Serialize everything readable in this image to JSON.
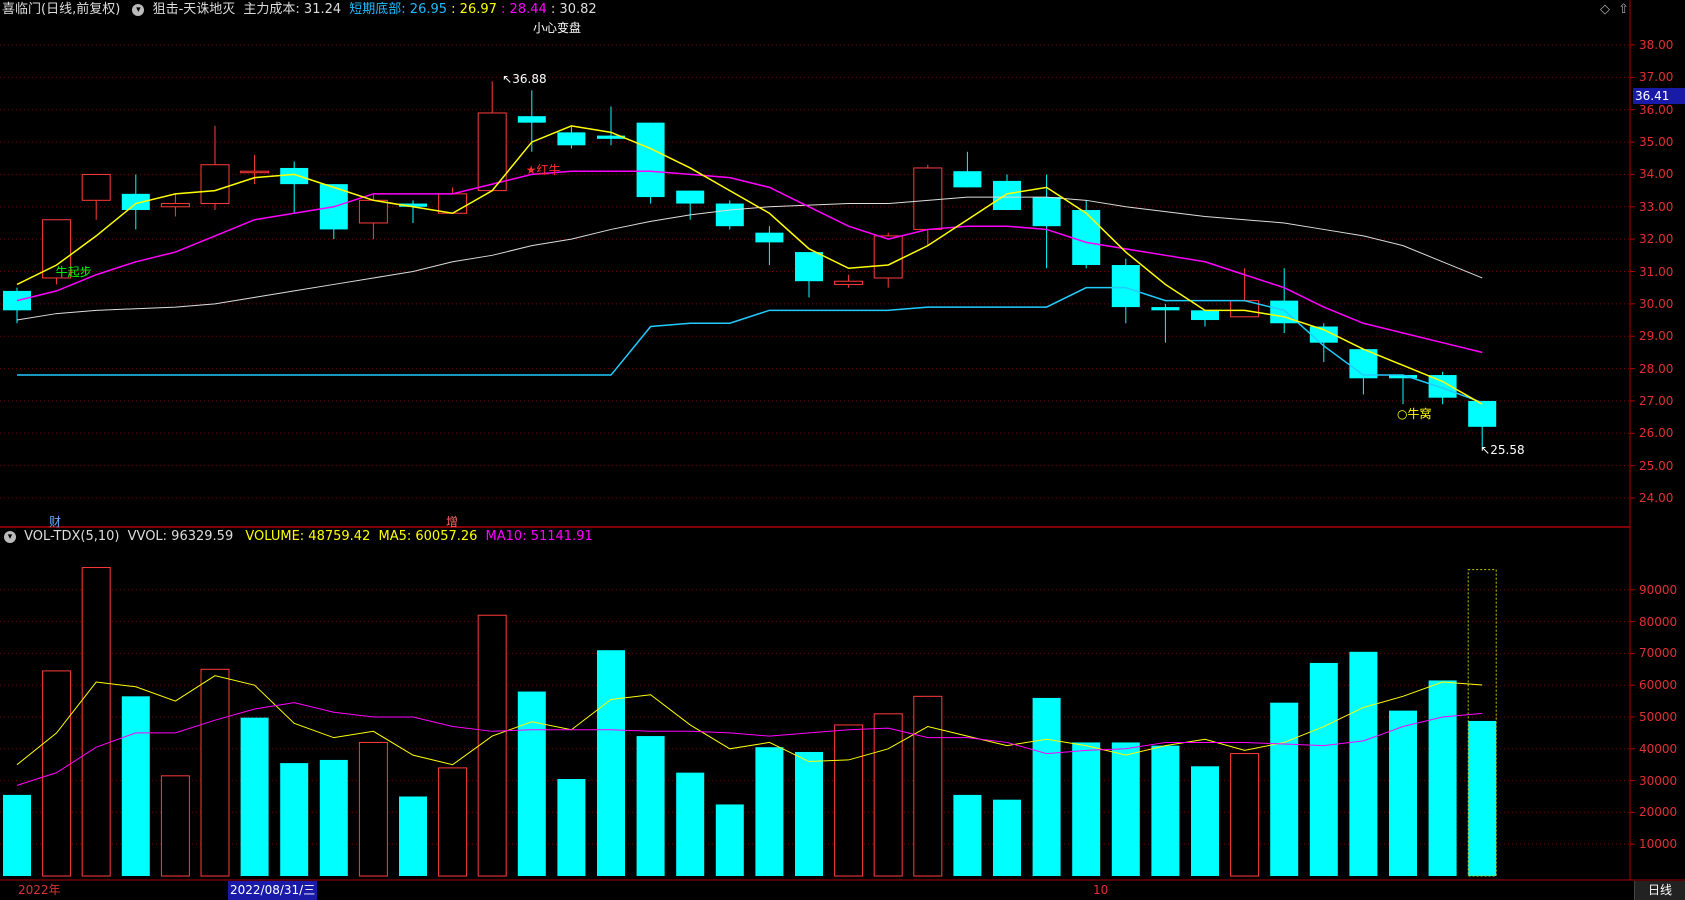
{
  "header": {
    "stock": "喜临门(日线,前复权)",
    "indicator": "狙击-天诛地灭",
    "cost_label": "主力成本: 31.24",
    "bottom_label": "短期底部: 26.95",
    "val2": ": 26.97",
    "val3": ": 28.44",
    "val4": ": 30.82",
    "signal_top": "小心变盘"
  },
  "price_axis": {
    "ticks": [
      "38.00",
      "37.00",
      "36.00",
      "35.00",
      "34.00",
      "33.00",
      "32.00",
      "31.00",
      "30.00",
      "29.00",
      "28.00",
      "27.00",
      "26.00",
      "25.00",
      "24.00"
    ],
    "current": "36.41"
  },
  "annotations": {
    "high": "36.88",
    "low": "25.58",
    "niu_qibu": "牛起步",
    "hong_niu": "★红牛",
    "niu_wo": "○牛窝",
    "cai": "财",
    "zeng": "增"
  },
  "volume_header": {
    "name": "VOL-TDX(5,10)",
    "vvol": "VVOL: 96329.59",
    "volume": "VOLUME: 48759.42",
    "ma5": "MA5: 60057.26",
    "ma10": "MA10: 51141.91"
  },
  "volume_axis": {
    "ticks": [
      "90000",
      "80000",
      "70000",
      "60000",
      "50000",
      "40000",
      "30000",
      "20000",
      "10000"
    ]
  },
  "bottom_bar": {
    "year": "2022年",
    "date": "2022/08/31/三",
    "month": "10",
    "period_tab": "日线"
  },
  "colors": {
    "up": "#ff3b3b",
    "down": "#00ffff",
    "ma5": "#ffff00",
    "ma10": "#ff00ff",
    "ma_long": "#dddddd",
    "support": "#22ccff",
    "grid": "#7a0000"
  },
  "chart_data": {
    "type": "candlestick",
    "candles": [
      [
        30.4,
        30.5,
        29.4,
        29.8
      ],
      [
        30.8,
        32.6,
        30.6,
        32.6
      ],
      [
        33.2,
        34.0,
        32.6,
        34.0
      ],
      [
        33.4,
        34.0,
        32.3,
        32.9
      ],
      [
        33.0,
        33.4,
        32.7,
        33.1
      ],
      [
        33.1,
        35.5,
        32.9,
        34.3
      ],
      [
        34.1,
        34.6,
        33.7,
        34.1
      ],
      [
        34.2,
        34.4,
        32.8,
        33.7
      ],
      [
        33.7,
        33.7,
        32.0,
        32.3
      ],
      [
        32.5,
        33.4,
        32.0,
        33.2
      ],
      [
        33.1,
        33.2,
        32.5,
        33.0
      ],
      [
        32.8,
        33.6,
        32.8,
        33.4
      ],
      [
        33.5,
        36.88,
        33.5,
        35.9
      ],
      [
        35.8,
        36.6,
        34.7,
        35.6
      ],
      [
        35.3,
        35.5,
        34.8,
        34.9
      ],
      [
        35.2,
        36.1,
        34.9,
        35.1
      ],
      [
        35.6,
        35.6,
        33.1,
        33.3
      ],
      [
        33.5,
        33.5,
        32.6,
        33.1
      ],
      [
        33.1,
        33.2,
        32.3,
        32.4
      ],
      [
        32.2,
        32.4,
        31.2,
        31.9
      ],
      [
        31.6,
        31.6,
        30.2,
        30.7
      ],
      [
        30.6,
        30.9,
        30.5,
        30.7
      ],
      [
        30.8,
        32.2,
        30.5,
        32.1
      ],
      [
        32.3,
        34.3,
        31.8,
        34.2
      ],
      [
        34.1,
        34.7,
        33.6,
        33.6
      ],
      [
        33.8,
        34.0,
        32.9,
        32.9
      ],
      [
        33.3,
        34.0,
        31.1,
        32.4
      ],
      [
        32.9,
        33.2,
        31.1,
        31.2
      ],
      [
        31.2,
        31.4,
        29.4,
        29.9
      ],
      [
        29.9,
        30.0,
        28.8,
        29.8
      ],
      [
        29.8,
        29.8,
        29.3,
        29.5
      ],
      [
        29.6,
        31.1,
        29.6,
        30.1
      ],
      [
        30.1,
        31.1,
        29.1,
        29.4
      ],
      [
        29.3,
        29.4,
        28.2,
        28.8
      ],
      [
        28.6,
        28.6,
        27.2,
        27.7
      ],
      [
        27.8,
        27.8,
        26.9,
        27.7
      ],
      [
        27.8,
        27.9,
        26.9,
        27.1
      ],
      [
        27.0,
        27.0,
        25.58,
        26.2
      ]
    ],
    "ma5": [
      30.6,
      31.2,
      32.1,
      33.1,
      33.4,
      33.5,
      33.9,
      34.0,
      33.6,
      33.2,
      33.0,
      32.8,
      33.5,
      35.0,
      35.5,
      35.3,
      34.8,
      34.2,
      33.5,
      32.8,
      31.7,
      31.1,
      31.2,
      31.8,
      32.6,
      33.4,
      33.6,
      32.8,
      31.6,
      30.6,
      29.8,
      29.8,
      29.6,
      29.2,
      28.6,
      28.1,
      27.6,
      26.9
    ],
    "ma10": [
      30.1,
      30.4,
      30.9,
      31.3,
      31.6,
      32.1,
      32.6,
      32.8,
      33.0,
      33.4,
      33.4,
      33.4,
      33.7,
      34.0,
      34.1,
      34.1,
      34.1,
      34.0,
      33.9,
      33.6,
      33.0,
      32.4,
      32.0,
      32.3,
      32.4,
      32.4,
      32.3,
      31.9,
      31.7,
      31.5,
      31.3,
      30.9,
      30.5,
      29.9,
      29.4,
      29.1,
      28.8,
      28.5
    ],
    "ma_long": [
      29.5,
      29.7,
      29.8,
      29.85,
      29.9,
      30.0,
      30.2,
      30.4,
      30.6,
      30.8,
      31.0,
      31.3,
      31.5,
      31.8,
      32.0,
      32.3,
      32.55,
      32.75,
      32.9,
      33.0,
      33.05,
      33.1,
      33.1,
      33.2,
      33.3,
      33.3,
      33.3,
      33.2,
      33.0,
      32.85,
      32.7,
      32.6,
      32.5,
      32.3,
      32.1,
      31.8,
      31.3,
      30.8
    ],
    "support": [
      27.8,
      27.8,
      27.8,
      27.8,
      27.8,
      27.8,
      27.8,
      27.8,
      27.8,
      27.8,
      27.8,
      27.8,
      27.8,
      27.8,
      27.8,
      27.8,
      29.3,
      29.4,
      29.4,
      29.8,
      29.8,
      29.8,
      29.8,
      29.9,
      29.9,
      29.9,
      29.9,
      30.5,
      30.5,
      30.1,
      30.1,
      30.1,
      29.8,
      28.7,
      27.8,
      27.8,
      27.4,
      26.95
    ],
    "volume": [
      25500,
      64500,
      97000,
      56500,
      31500,
      65000,
      49800,
      35500,
      36500,
      42000,
      25000,
      34000,
      82000,
      58000,
      30500,
      71000,
      44000,
      32500,
      22500,
      40500,
      39000,
      47500,
      51000,
      56500,
      25500,
      24000,
      56000,
      42000,
      42000,
      41000,
      34500,
      38500,
      54500,
      67000,
      70500,
      52000,
      61500,
      48759.42
    ],
    "vol_up": [
      false,
      true,
      true,
      false,
      true,
      true,
      false,
      false,
      false,
      true,
      false,
      true,
      true,
      false,
      false,
      false,
      false,
      false,
      false,
      false,
      false,
      true,
      true,
      true,
      false,
      false,
      false,
      false,
      false,
      false,
      false,
      true,
      false,
      false,
      false,
      false,
      false,
      false
    ],
    "vol_ma5": [
      35000,
      45000,
      61000,
      59500,
      55000,
      63000,
      60000,
      48000,
      43500,
      45500,
      38000,
      35000,
      44000,
      48500,
      46000,
      55500,
      57000,
      47500,
      40000,
      42000,
      36000,
      36500,
      40000,
      47000,
      44000,
      41000,
      43000,
      41000,
      38000,
      41000,
      43000,
      39500,
      42000,
      47000,
      53000,
      56500,
      61000,
      60057.26
    ],
    "vol_ma10": [
      28500,
      32500,
      40500,
      45000,
      45000,
      49000,
      52500,
      54500,
      51500,
      50000,
      50000,
      47000,
      45500,
      46000,
      46000,
      46000,
      45500,
      45500,
      45000,
      44000,
      45000,
      46000,
      46500,
      43500,
      43500,
      42000,
      38500,
      39500,
      40000,
      42000,
      42000,
      42000,
      41500,
      41000,
      42500,
      47000,
      50000,
      51141.91
    ],
    "price_range": [
      23.5,
      38.5
    ],
    "vol_range": [
      0,
      100000
    ]
  }
}
